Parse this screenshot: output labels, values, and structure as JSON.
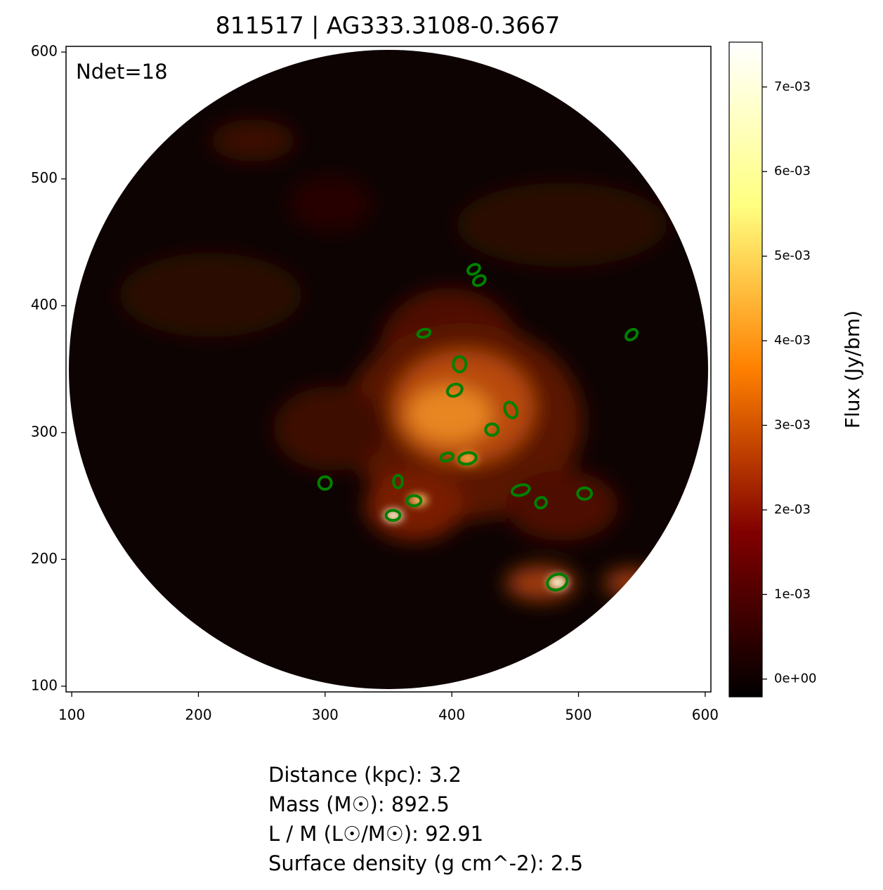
{
  "chart_data": {
    "type": "image",
    "title": "811517 | AG333.3108-0.3667",
    "annotation": "Ndet=18",
    "xlim": [
      95.5,
      604.5
    ],
    "ylim": [
      95.5,
      604.5
    ],
    "xticks": [
      100,
      200,
      300,
      400,
      500,
      600
    ],
    "yticks": [
      100,
      200,
      300,
      400,
      500,
      600
    ],
    "marker_color": "#008000",
    "detections": [
      {
        "x": 417.3,
        "y": 428.7,
        "w": 10,
        "h": 7,
        "angle": -30
      },
      {
        "x": 421.7,
        "y": 419.8,
        "w": 10,
        "h": 7,
        "angle": -30
      },
      {
        "x": 378,
        "y": 378.3,
        "w": 10,
        "h": 6,
        "angle": -15
      },
      {
        "x": 541.9,
        "y": 377.2,
        "w": 10,
        "h": 7,
        "angle": -40
      },
      {
        "x": 406.2,
        "y": 353.9,
        "w": 10,
        "h": 12,
        "angle": 0
      },
      {
        "x": 402.3,
        "y": 333.4,
        "w": 12,
        "h": 9,
        "angle": -25
      },
      {
        "x": 446.6,
        "y": 317.8,
        "w": 9,
        "h": 13,
        "angle": -25
      },
      {
        "x": 431.7,
        "y": 302.3,
        "w": 10,
        "h": 9,
        "angle": 0
      },
      {
        "x": 396.2,
        "y": 280.7,
        "w": 10,
        "h": 6,
        "angle": -15
      },
      {
        "x": 412.3,
        "y": 279.6,
        "w": 14,
        "h": 9,
        "angle": -10
      },
      {
        "x": 299.9,
        "y": 260.2,
        "w": 10,
        "h": 10,
        "angle": 0
      },
      {
        "x": 357.5,
        "y": 261.3,
        "w": 7,
        "h": 10,
        "angle": 0
      },
      {
        "x": 370.2,
        "y": 246.3,
        "w": 11,
        "h": 8,
        "angle": 0
      },
      {
        "x": 454.4,
        "y": 254.6,
        "w": 14,
        "h": 8,
        "angle": -15
      },
      {
        "x": 470.4,
        "y": 244.7,
        "w": 9,
        "h": 8,
        "angle": -35
      },
      {
        "x": 504.8,
        "y": 251.9,
        "w": 11,
        "h": 9,
        "angle": 0
      },
      {
        "x": 353.6,
        "y": 234.7,
        "w": 11,
        "h": 8,
        "angle": 0
      },
      {
        "x": 483.2,
        "y": 182.1,
        "w": 16,
        "h": 12,
        "angle": -20
      }
    ],
    "colorbar": {
      "label": "Flux (Jy/bm)",
      "clim": [
        -0.00021,
        0.00753
      ],
      "colors": [
        "#000000",
        "#800000",
        "#ff8000",
        "#ffff80",
        "#ffffff"
      ],
      "ticks": [
        {
          "value": 0,
          "label": "0e+00"
        },
        {
          "value": 0.001,
          "label": "1e-03"
        },
        {
          "value": 0.002,
          "label": "2e-03"
        },
        {
          "value": 0.003,
          "label": "3e-03"
        },
        {
          "value": 0.004,
          "label": "4e-03"
        },
        {
          "value": 0.005,
          "label": "5e-03"
        },
        {
          "value": 0.006,
          "label": "6e-03"
        },
        {
          "value": 0.007,
          "label": "7e-03"
        }
      ]
    },
    "info": [
      "Distance (kpc): 3.2",
      "Mass (M☉): 892.5",
      "L / M (L☉/M☉): 92.91",
      "Surface density (g cm^-2): 2.5"
    ]
  }
}
